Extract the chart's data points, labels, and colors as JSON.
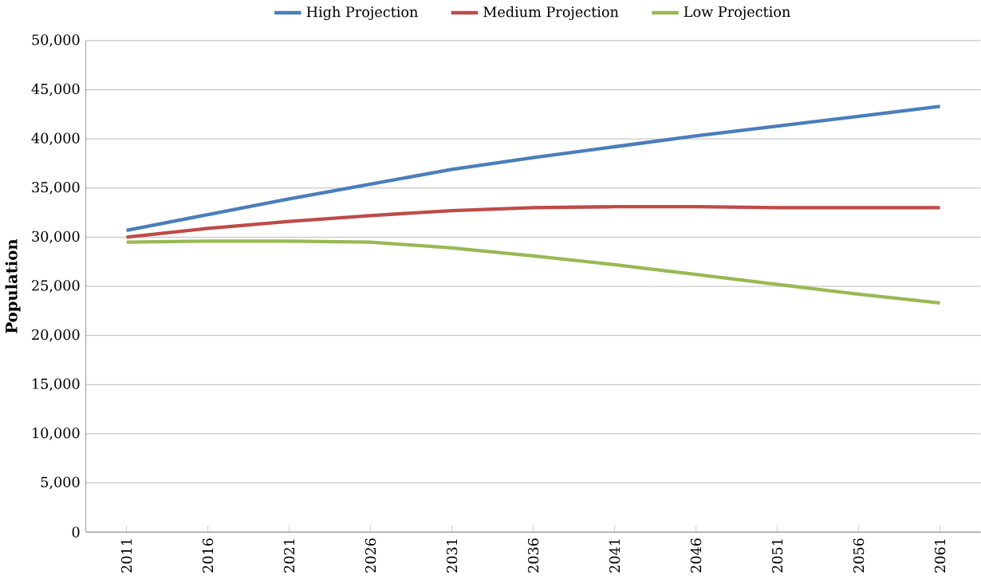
{
  "chart_data": {
    "type": "line",
    "ylabel": "Population",
    "categories": [
      "2011",
      "2016",
      "2021",
      "2026",
      "2031",
      "2036",
      "2041",
      "2046",
      "2051",
      "2056",
      "2061"
    ],
    "series": [
      {
        "name": "High Projection",
        "color": "#4a7ebb",
        "values": [
          30700,
          32300,
          33900,
          35400,
          36900,
          38100,
          39200,
          40300,
          41300,
          42300,
          43300
        ]
      },
      {
        "name": "Medium Projection",
        "color": "#be4b48",
        "values": [
          30000,
          30900,
          31600,
          32200,
          32700,
          33000,
          33100,
          33100,
          33000,
          33000,
          33000
        ]
      },
      {
        "name": "Low Projection",
        "color": "#98b954",
        "values": [
          29500,
          29600,
          29600,
          29500,
          28900,
          28100,
          27200,
          26200,
          25200,
          24200,
          23300
        ]
      }
    ],
    "ylim": [
      0,
      50000
    ],
    "yticks": [
      {
        "value": 0,
        "label": "0"
      },
      {
        "value": 5000,
        "label": "5,000"
      },
      {
        "value": 10000,
        "label": "10,000"
      },
      {
        "value": 15000,
        "label": "15,000"
      },
      {
        "value": 20000,
        "label": "20,000"
      },
      {
        "value": 25000,
        "label": "25,000"
      },
      {
        "value": 30000,
        "label": "30,000"
      },
      {
        "value": 35000,
        "label": "35,000"
      },
      {
        "value": 40000,
        "label": "40,000"
      },
      {
        "value": 45000,
        "label": "45,000"
      },
      {
        "value": 50000,
        "label": "50,000"
      }
    ],
    "grid": "y",
    "legend": "top",
    "marker": "none",
    "line_style": "solid"
  }
}
